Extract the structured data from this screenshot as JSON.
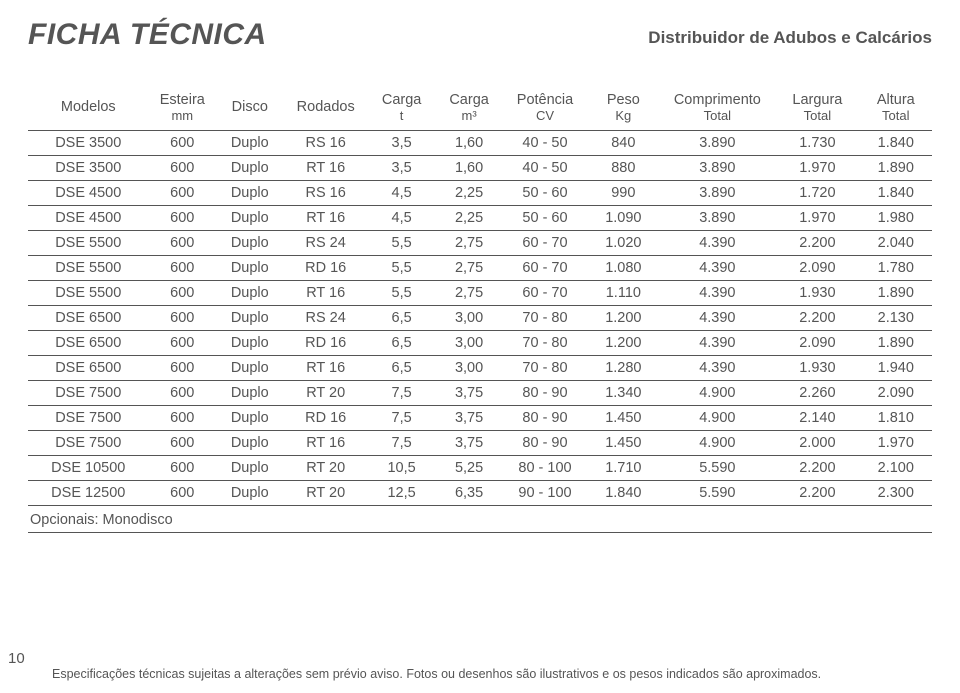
{
  "header": {
    "title": "FICHA TÉCNICA",
    "subtitle": "Distribuidor de Adubos e Calcários"
  },
  "table": {
    "columns": [
      {
        "l1": "Modelos",
        "l2": ""
      },
      {
        "l1": "Esteira",
        "l2": "mm"
      },
      {
        "l1": "Disco",
        "l2": ""
      },
      {
        "l1": "Rodados",
        "l2": ""
      },
      {
        "l1": "Carga",
        "l2": "t"
      },
      {
        "l1": "Carga",
        "l2": "m³"
      },
      {
        "l1": "Potência",
        "l2": "CV"
      },
      {
        "l1": "Peso",
        "l2": "Kg"
      },
      {
        "l1": "Comprimento",
        "l2": "Total"
      },
      {
        "l1": "Largura",
        "l2": "Total"
      },
      {
        "l1": "Altura",
        "l2": "Total"
      }
    ],
    "rows": [
      [
        "DSE 3500",
        "600",
        "Duplo",
        "RS 16",
        "3,5",
        "1,60",
        "40 - 50",
        "840",
        "3.890",
        "1.730",
        "1.840"
      ],
      [
        "DSE 3500",
        "600",
        "Duplo",
        "RT 16",
        "3,5",
        "1,60",
        "40 - 50",
        "880",
        "3.890",
        "1.970",
        "1.890"
      ],
      [
        "DSE 4500",
        "600",
        "Duplo",
        "RS 16",
        "4,5",
        "2,25",
        "50 - 60",
        "990",
        "3.890",
        "1.720",
        "1.840"
      ],
      [
        "DSE 4500",
        "600",
        "Duplo",
        "RT 16",
        "4,5",
        "2,25",
        "50 - 60",
        "1.090",
        "3.890",
        "1.970",
        "1.980"
      ],
      [
        "DSE 5500",
        "600",
        "Duplo",
        "RS 24",
        "5,5",
        "2,75",
        "60 - 70",
        "1.020",
        "4.390",
        "2.200",
        "2.040"
      ],
      [
        "DSE 5500",
        "600",
        "Duplo",
        "RD 16",
        "5,5",
        "2,75",
        "60 - 70",
        "1.080",
        "4.390",
        "2.090",
        "1.780"
      ],
      [
        "DSE 5500",
        "600",
        "Duplo",
        "RT 16",
        "5,5",
        "2,75",
        "60 - 70",
        "1.110",
        "4.390",
        "1.930",
        "1.890"
      ],
      [
        "DSE 6500",
        "600",
        "Duplo",
        "RS 24",
        "6,5",
        "3,00",
        "70 - 80",
        "1.200",
        "4.390",
        "2.200",
        "2.130"
      ],
      [
        "DSE 6500",
        "600",
        "Duplo",
        "RD 16",
        "6,5",
        "3,00",
        "70 - 80",
        "1.200",
        "4.390",
        "2.090",
        "1.890"
      ],
      [
        "DSE 6500",
        "600",
        "Duplo",
        "RT 16",
        "6,5",
        "3,00",
        "70 - 80",
        "1.280",
        "4.390",
        "1.930",
        "1.940"
      ],
      [
        "DSE 7500",
        "600",
        "Duplo",
        "RT 20",
        "7,5",
        "3,75",
        "80 - 90",
        "1.340",
        "4.900",
        "2.260",
        "2.090"
      ],
      [
        "DSE 7500",
        "600",
        "Duplo",
        "RD 16",
        "7,5",
        "3,75",
        "80 - 90",
        "1.450",
        "4.900",
        "2.140",
        "1.810"
      ],
      [
        "DSE 7500",
        "600",
        "Duplo",
        "RT 16",
        "7,5",
        "3,75",
        "80 - 90",
        "1.450",
        "4.900",
        "2.000",
        "1.970"
      ],
      [
        "DSE 10500",
        "600",
        "Duplo",
        "RT 20",
        "10,5",
        "5,25",
        "80 - 100",
        "1.710",
        "5.590",
        "2.200",
        "2.100"
      ],
      [
        "DSE 12500",
        "600",
        "Duplo",
        "RT 20",
        "12,5",
        "6,35",
        "90 - 100",
        "1.840",
        "5.590",
        "2.200",
        "2.300"
      ]
    ],
    "note": "Opcionais: Monodisco"
  },
  "footer": {
    "page_number": "10",
    "text": "Especificações técnicas sujeitas a alterações sem prévio aviso. Fotos ou desenhos são ilustrativos e os pesos indicados são aproximados."
  },
  "style": {
    "text_color": "#555555",
    "background_color": "#ffffff",
    "border_color": "#555555",
    "title_fontsize": 30,
    "subtitle_fontsize": 17,
    "cell_fontsize": 14.5,
    "footer_fontsize": 12.5,
    "font_family": "Arial"
  }
}
